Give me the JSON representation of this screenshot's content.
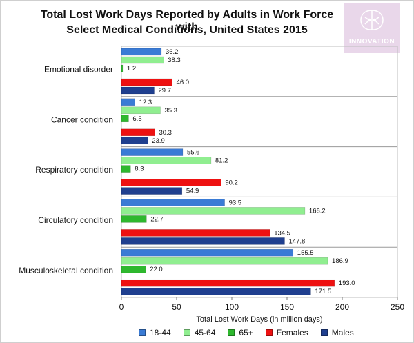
{
  "chart_data": {
    "type": "bar",
    "orientation": "horizontal",
    "title_lines": [
      "Total Lost Work Days Reported by Adults in Work Force with",
      "Select Medical Conditions, United States 2015"
    ],
    "xlabel": "Total Lost Work Days (in million days)",
    "ylabel": "",
    "xlim": [
      0,
      250
    ],
    "xticks": [
      0,
      50,
      100,
      150,
      200,
      250
    ],
    "grid": false,
    "legend_position": "bottom",
    "categories": [
      "Emotional disorder",
      "Cancer condition",
      "Respiratory condition",
      "Circulatory condition",
      "Musculoskeletal condition"
    ],
    "series": [
      {
        "name": "18-44",
        "color": "#3a7bd5",
        "values": [
          36.2,
          12.3,
          55.6,
          93.5,
          155.5
        ]
      },
      {
        "name": "45-64",
        "color": "#90ee90",
        "values": [
          38.3,
          35.3,
          81.2,
          166.2,
          186.9
        ]
      },
      {
        "name": "65+",
        "color": "#2eb82e",
        "values": [
          1.2,
          6.5,
          8.3,
          22.7,
          22.0
        ]
      },
      {
        "name": "Females",
        "color": "#ee1111",
        "values": [
          46.0,
          30.3,
          90.2,
          134.5,
          193.0
        ]
      },
      {
        "name": "Males",
        "color": "#1f3f8f",
        "values": [
          29.7,
          23.9,
          54.9,
          147.8,
          171.5
        ]
      }
    ]
  },
  "watermark": {
    "text": "INNOVATION",
    "icon": "brain-icon",
    "color": "#e9d7ea"
  }
}
